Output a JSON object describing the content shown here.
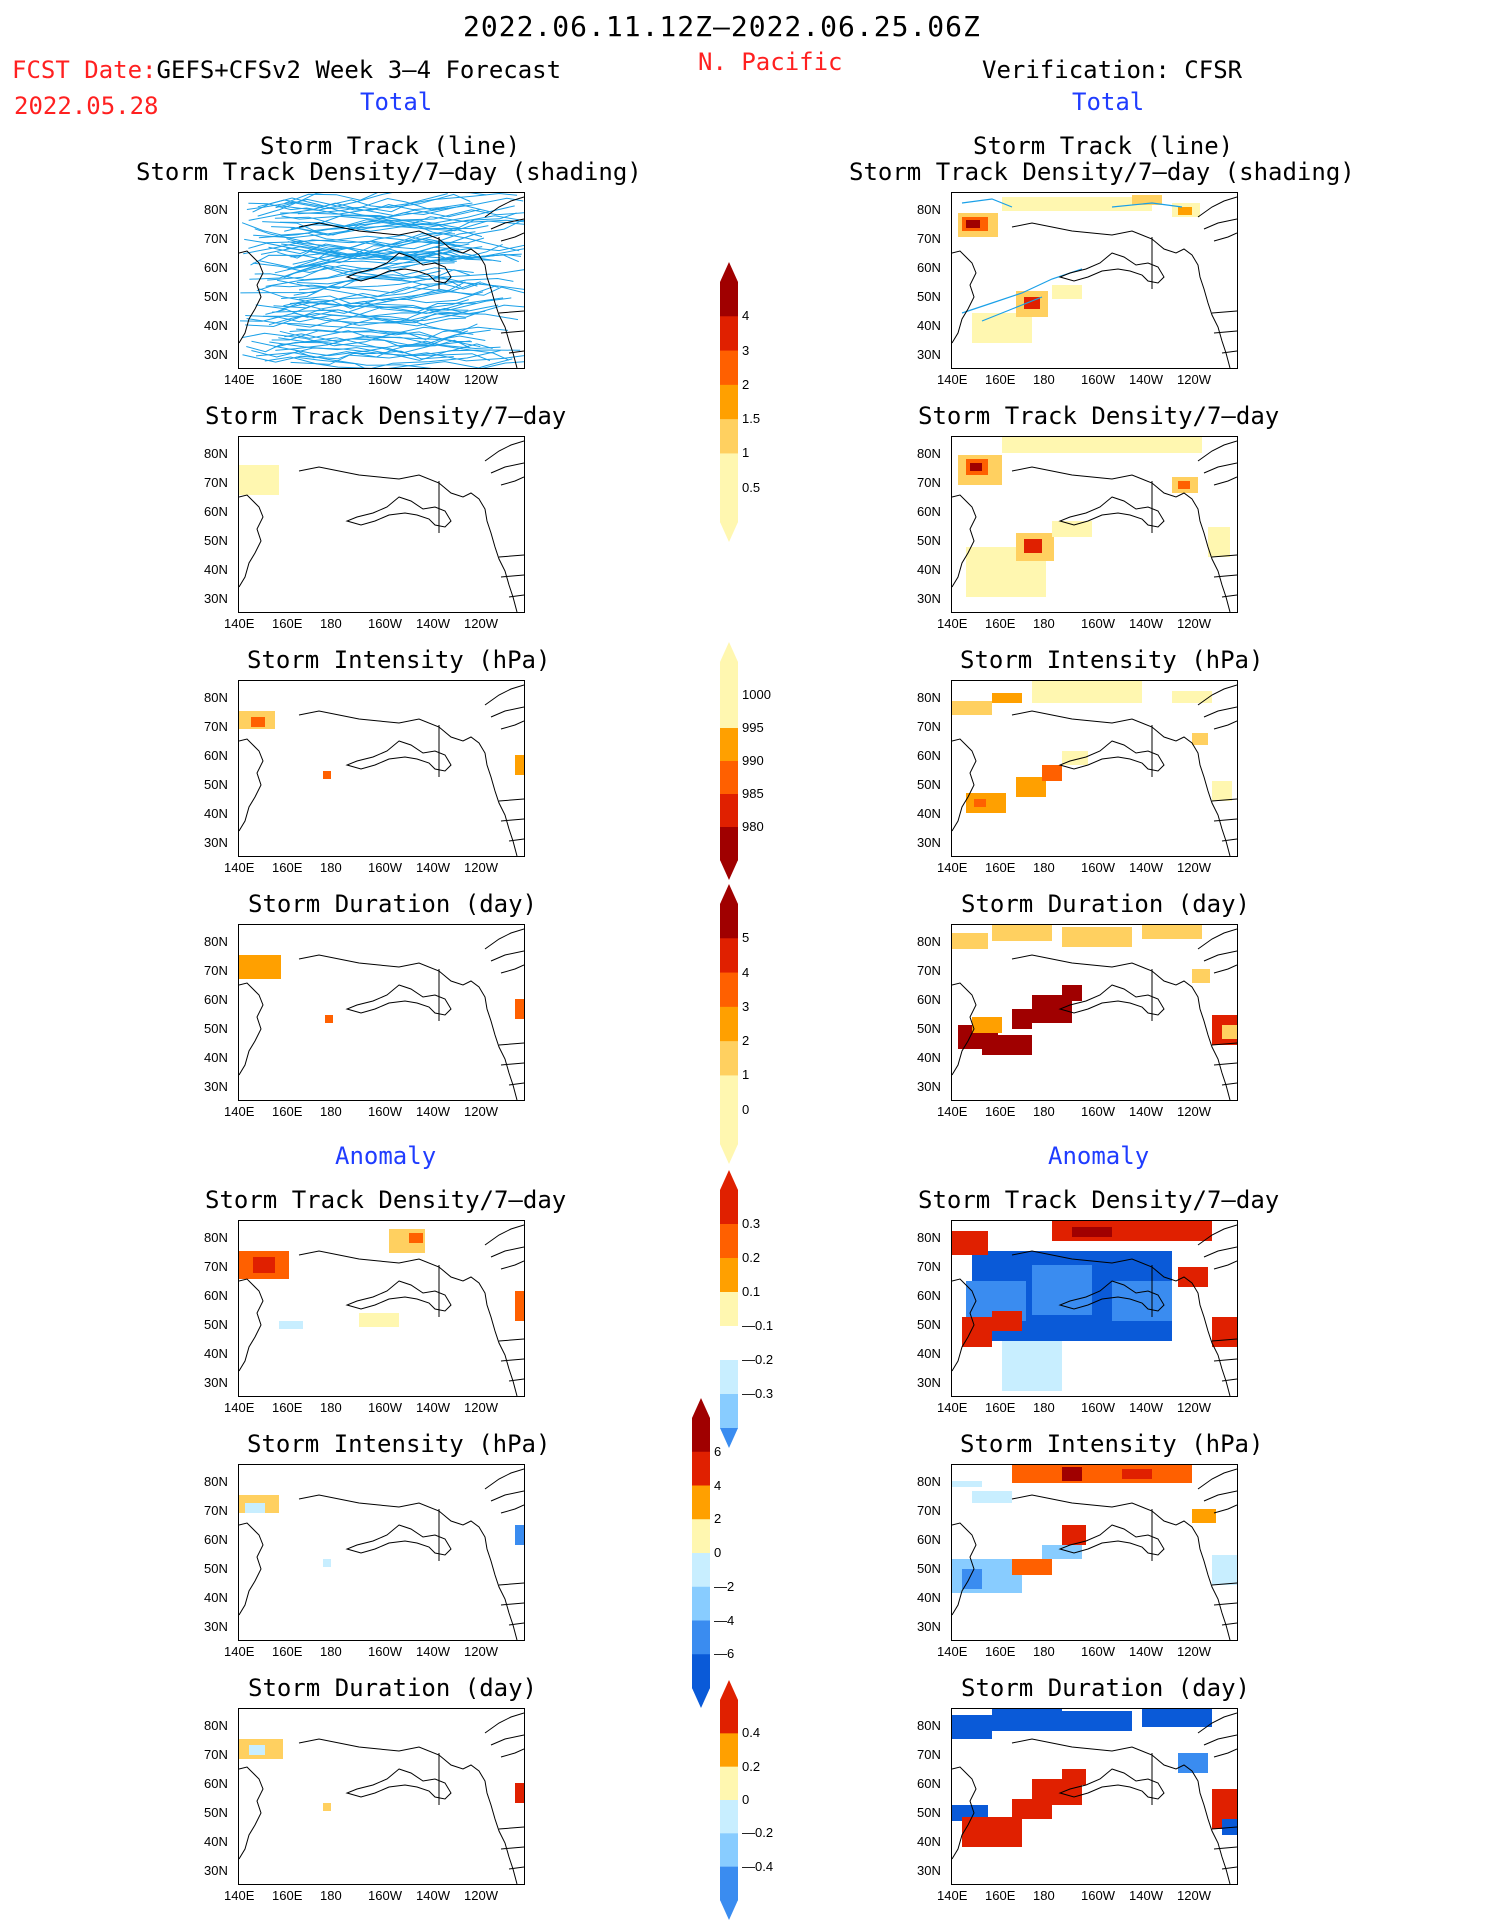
{
  "header": {
    "date_range": "2022.06.11.12Z—2022.06.25.06Z",
    "region": "N. Pacific",
    "fcst_date_label": "FCST Date:",
    "fcst_model": "GEFS+CFSv2 Week 3—4 Forecast",
    "fcst_date": "2022.05.28",
    "verification": "Verification: CFSR"
  },
  "sections": {
    "total_label": "Total",
    "anomaly_label": "Anomaly"
  },
  "panel_titles": {
    "track_line": "Storm Track (line)",
    "track_shading": "Storm Track Density/7—day (shading)",
    "track_density": "Storm Track Density/7—day",
    "intensity": "Storm Intensity (hPa)",
    "duration": "Storm Duration (day)"
  },
  "axes": {
    "lat_labels": [
      "80N",
      "70N",
      "60N",
      "50N",
      "40N",
      "30N"
    ],
    "lon_labels": [
      "140E",
      "160E",
      "180",
      "160W",
      "140W",
      "120W"
    ]
  },
  "colorbars": {
    "track_density": [
      "4",
      "3",
      "2",
      "1.5",
      "1",
      "0.5"
    ],
    "intensity": [
      "1000",
      "995",
      "990",
      "985",
      "980"
    ],
    "duration": [
      "5",
      "4",
      "3",
      "2",
      "1",
      "0"
    ],
    "anom_density": [
      "0.3",
      "0.2",
      "0.1",
      "—0.1",
      "—0.2",
      "—0.3"
    ],
    "anom_intensity": [
      "6",
      "4",
      "2",
      "0",
      "—2",
      "—4",
      "—6"
    ],
    "anom_duration": [
      "0.4",
      "0.2",
      "0",
      "—0.2",
      "—0.4"
    ]
  },
  "colors": {
    "title_red": "#ff2020",
    "label_blue": "#1f3cff",
    "track_line": "#1aa0e8",
    "warm_scale": [
      "#fff7b0",
      "#ffd060",
      "#ffa000",
      "#ff6000",
      "#e02000",
      "#a00000"
    ],
    "cool_scale": [
      "#c8eeff",
      "#88ccff",
      "#3a8cf0",
      "#0a5ad8"
    ]
  }
}
